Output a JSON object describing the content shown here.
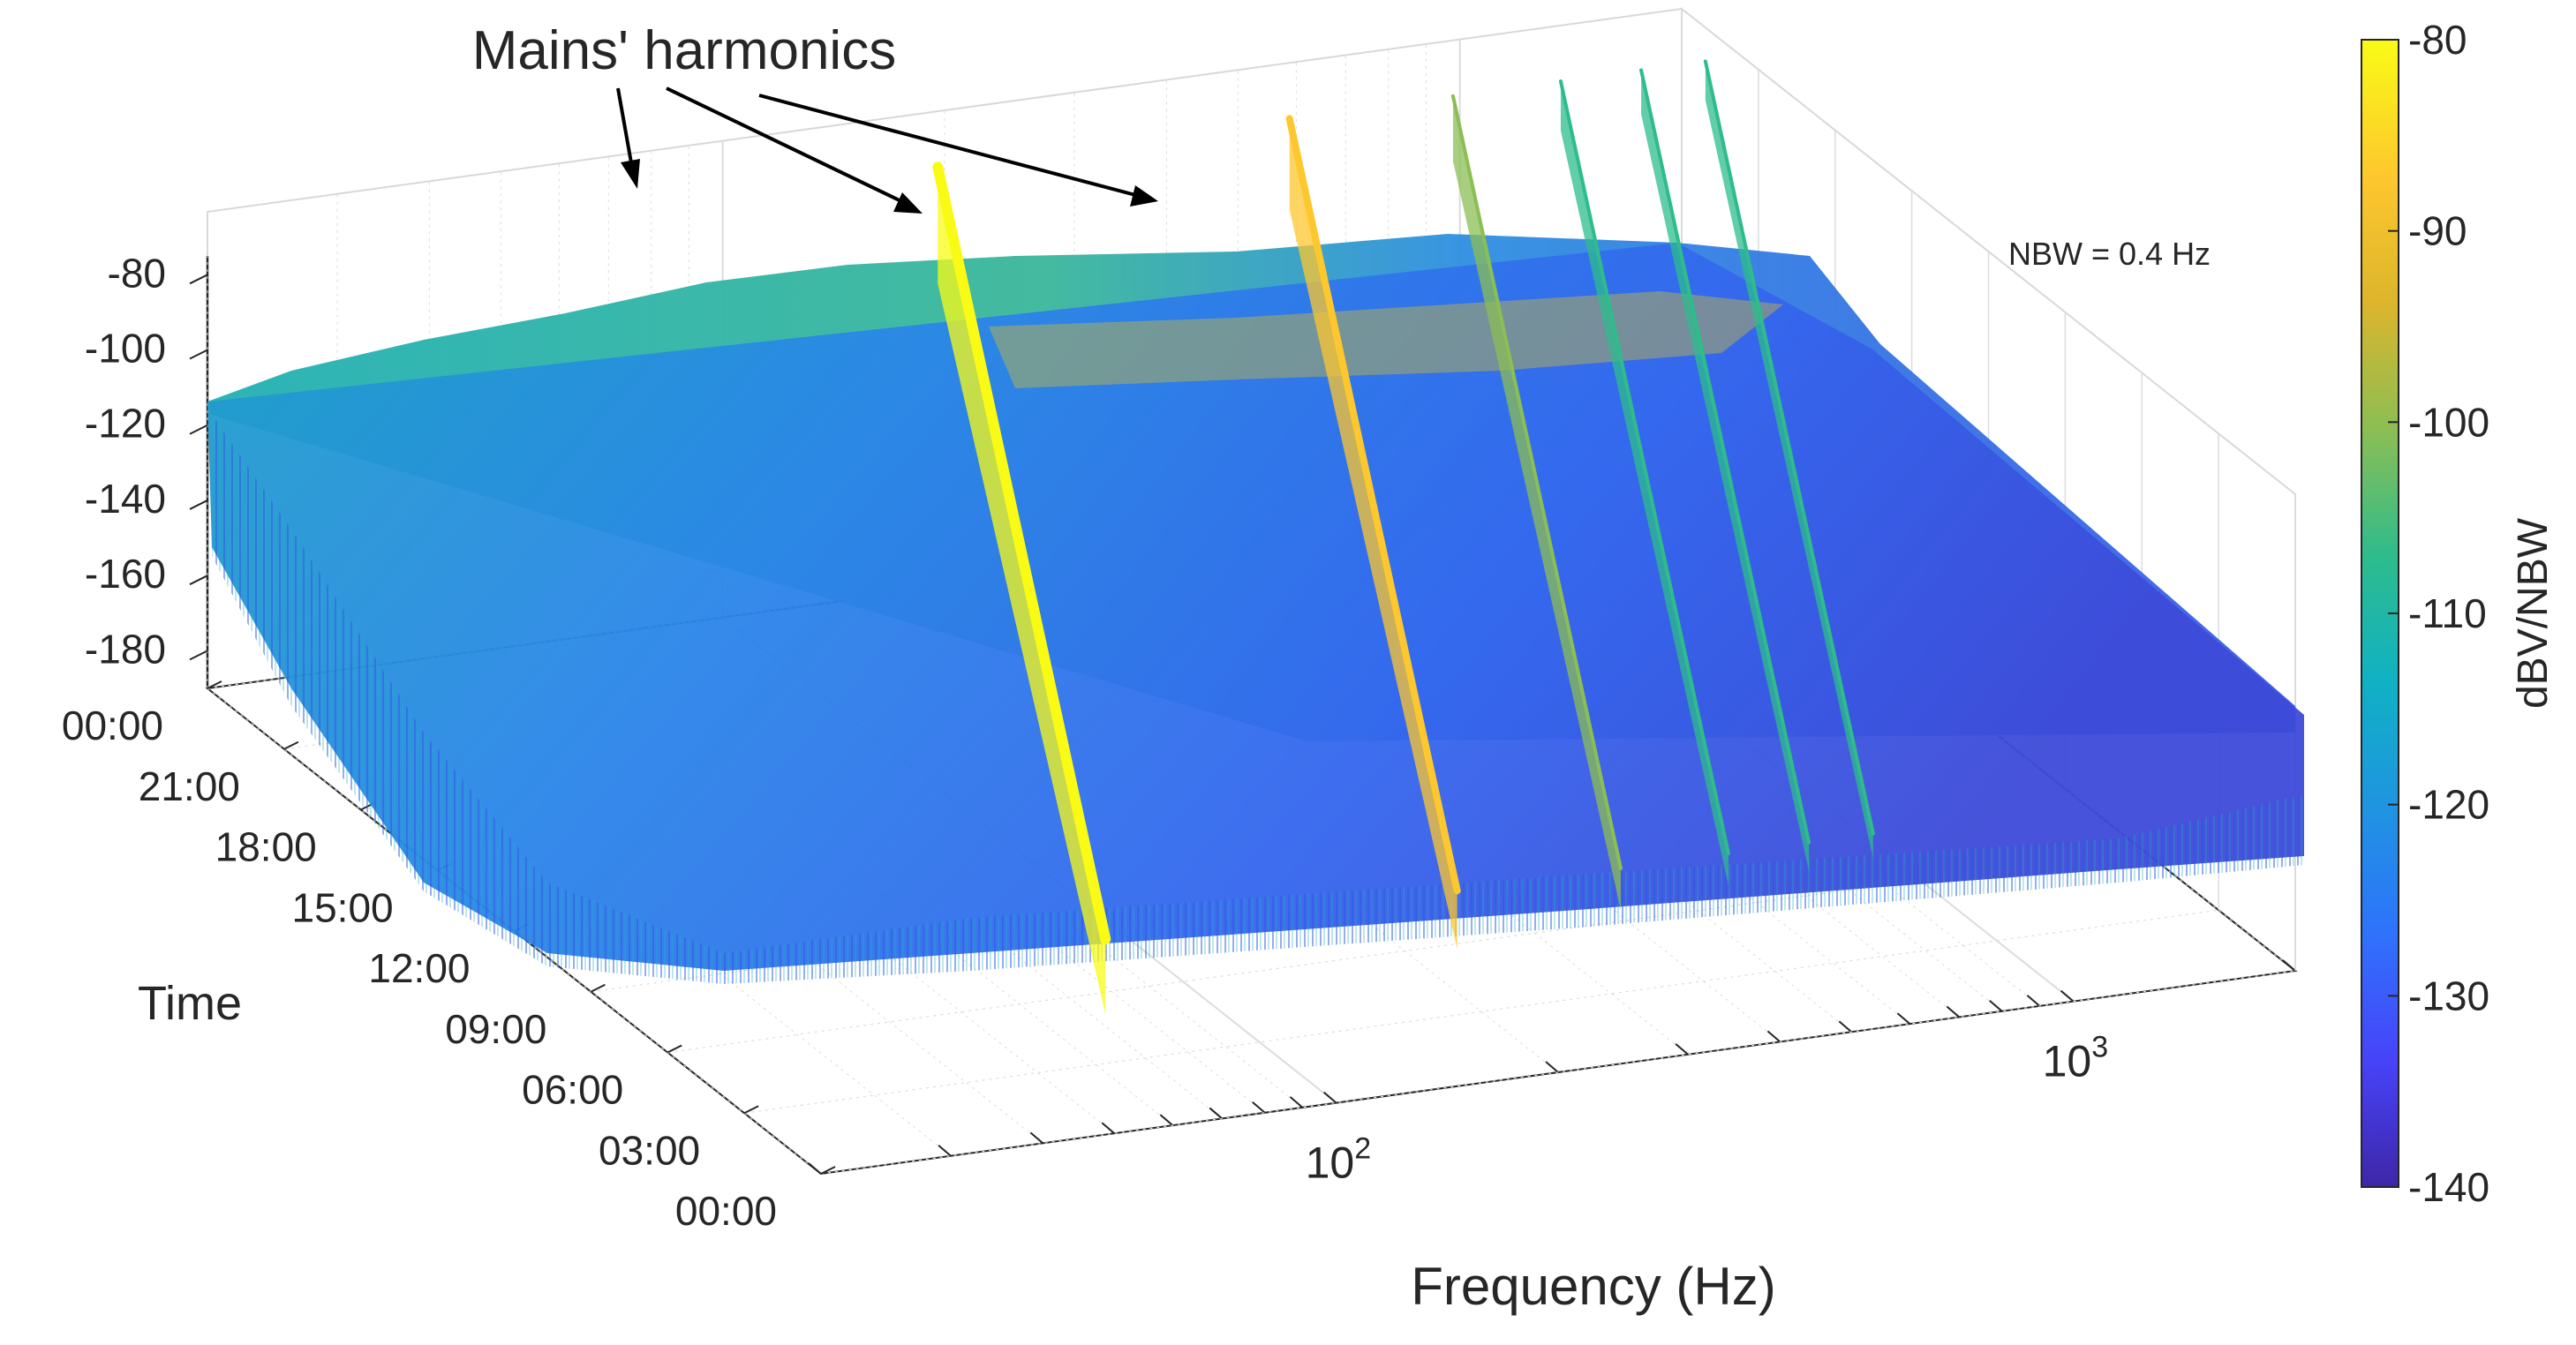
{
  "chart_data": {
    "type": "surface",
    "title": "",
    "annotation": "Mains' harmonics",
    "nbw_note": "NBW = 0.4 Hz",
    "xlabel": "Frequency (Hz)",
    "ylabel": "Time",
    "zlabel": "",
    "x_scale": "log",
    "xlim": [
      20,
      2000
    ],
    "x_ticks": [
      {
        "value": 100,
        "base": "10",
        "exp": "2"
      },
      {
        "value": 1000,
        "base": "10",
        "exp": "3"
      }
    ],
    "y_ticks": [
      "00:00",
      "03:00",
      "06:00",
      "09:00",
      "12:00",
      "15:00",
      "18:00",
      "21:00",
      "00:00"
    ],
    "z_ticks": [
      "-180",
      "-160",
      "-140",
      "-120",
      "-100",
      "-80"
    ],
    "zlim": [
      -190,
      -75
    ],
    "colorbar": {
      "label": "dBV/NBW",
      "ticks": [
        "-80",
        "-90",
        "-100",
        "-110",
        "-120",
        "-130",
        "-140"
      ],
      "range": [
        -140,
        -80
      ],
      "colormap": [
        "#3e26a8",
        "#4743f9",
        "#2f72fc",
        "#1f94e1",
        "#10b1c4",
        "#2ebc8c",
        "#8bbe54",
        "#dcb52c",
        "#fdc72e",
        "#f9fb15"
      ]
    },
    "harmonics": [
      {
        "frequency_hz": 50,
        "level_dbv": -80
      },
      {
        "frequency_hz": 150,
        "level_dbv": -90
      },
      {
        "frequency_hz": 250,
        "level_dbv": -100
      },
      {
        "frequency_hz": 350,
        "level_dbv": -106
      },
      {
        "frequency_hz": 450,
        "level_dbv": -108
      },
      {
        "frequency_hz": 550,
        "level_dbv": -110
      }
    ],
    "noise_floor_dbv": [
      -125,
      -135
    ],
    "grid": true
  }
}
